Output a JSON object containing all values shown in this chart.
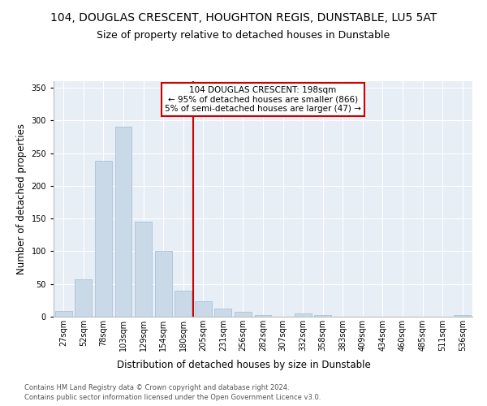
{
  "title": "104, DOUGLAS CRESCENT, HOUGHTON REGIS, DUNSTABLE, LU5 5AT",
  "subtitle": "Size of property relative to detached houses in Dunstable",
  "xlabel": "Distribution of detached houses by size in Dunstable",
  "ylabel": "Number of detached properties",
  "bar_labels": [
    "27sqm",
    "52sqm",
    "78sqm",
    "103sqm",
    "129sqm",
    "154sqm",
    "180sqm",
    "205sqm",
    "231sqm",
    "256sqm",
    "282sqm",
    "307sqm",
    "332sqm",
    "358sqm",
    "383sqm",
    "409sqm",
    "434sqm",
    "460sqm",
    "485sqm",
    "511sqm",
    "536sqm"
  ],
  "bar_values": [
    9,
    57,
    238,
    290,
    145,
    100,
    40,
    23,
    12,
    7,
    3,
    0,
    5,
    3,
    0,
    0,
    0,
    0,
    0,
    0,
    2
  ],
  "bar_color": "#c9d9e8",
  "bar_edge_color": "#a0bcd4",
  "vline_color": "#cc0000",
  "vline_x_index": 6.5,
  "annotation_text": "104 DOUGLAS CRESCENT: 198sqm\n← 95% of detached houses are smaller (866)\n5% of semi-detached houses are larger (47) →",
  "annotation_box_color": "#ffffff",
  "annotation_box_edge_color": "#cc0000",
  "ylim": [
    0,
    360
  ],
  "yticks": [
    0,
    50,
    100,
    150,
    200,
    250,
    300,
    350
  ],
  "axes_bg_color": "#e8eef6",
  "footer1": "Contains HM Land Registry data © Crown copyright and database right 2024.",
  "footer2": "Contains public sector information licensed under the Open Government Licence v3.0.",
  "title_fontsize": 10,
  "subtitle_fontsize": 9,
  "tick_fontsize": 7,
  "ylabel_fontsize": 8.5,
  "xlabel_fontsize": 8.5,
  "annotation_fontsize": 7.5,
  "footer_fontsize": 6
}
